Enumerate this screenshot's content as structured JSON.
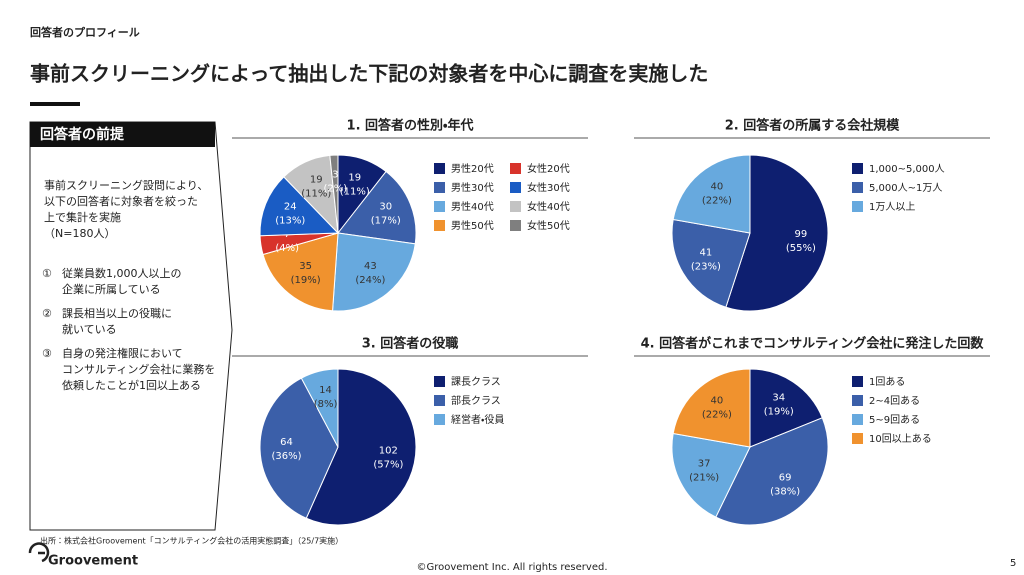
{
  "header": {
    "section": "回答者のプロフィール",
    "title": "事前スクリーニングによって抽出した下記の対象者を中心に調査を実施した"
  },
  "sidebar": {
    "heading": "回答者の前提",
    "intro": [
      "事前スクリーニング設問により、",
      "以下の回答者に対象者を絞った",
      "上で集計を実施",
      "（N=180人）"
    ],
    "items": [
      {
        "marker": "①",
        "lines": [
          "従業員数1,000人以上の",
          "企業に所属している"
        ]
      },
      {
        "marker": "②",
        "lines": [
          "課長相当以上の役職に",
          "就いている"
        ]
      },
      {
        "marker": "③",
        "lines": [
          "自身の発注権限において",
          "コンサルティング会社に業務を",
          "依頼したことが1回以上ある"
        ]
      }
    ]
  },
  "chart_data": [
    {
      "type": "pie",
      "title": "1. 回答者の性別・年代",
      "categories": [
        "男性20代",
        "男性30代",
        "男性40代",
        "男性50代",
        "女性20代",
        "女性30代",
        "女性40代",
        "女性50代"
      ],
      "values": [
        19,
        30,
        43,
        35,
        7,
        24,
        19,
        3
      ],
      "percent_labels": [
        "(11%)",
        "(17%)",
        "(24%)",
        "(19%)",
        "(4%)",
        "(13%)",
        "(11%)",
        "(2%)"
      ],
      "colors": [
        "#0e1f70",
        "#3b5fa9",
        "#67a9de",
        "#f0922e",
        "#d8332b",
        "#1a5cc4",
        "#c3c3c3",
        "#7f7f7f"
      ],
      "slice_order": [
        0,
        1,
        2,
        3,
        4,
        5,
        6,
        7
      ],
      "legend_columns": 2
    },
    {
      "type": "pie",
      "title": "2. 回答者の所属する会社規模",
      "categories": [
        "1,000~5,000人",
        "5,000人~1万人",
        "1万人以上"
      ],
      "values": [
        99,
        41,
        40
      ],
      "percent_labels": [
        "(55%)",
        "(23%)",
        "(22%)"
      ],
      "colors": [
        "#0e1f70",
        "#3b5fa9",
        "#67a9de"
      ],
      "legend_columns": 1
    },
    {
      "type": "pie",
      "title": "3. 回答者の役職",
      "categories": [
        "課長クラス",
        "部長クラス",
        "経営者・役員"
      ],
      "values": [
        102,
        64,
        14
      ],
      "percent_labels": [
        "(57%)",
        "(36%)",
        "(8%)"
      ],
      "colors": [
        "#0e1f70",
        "#3b5fa9",
        "#67a9de"
      ],
      "legend_columns": 1
    },
    {
      "type": "pie",
      "title": "4. 回答者がこれまでコンサルティング会社に発注した回数",
      "categories": [
        "1回ある",
        "2~4回ある",
        "5~9回ある",
        "10回以上ある"
      ],
      "values": [
        34,
        69,
        37,
        40
      ],
      "percent_labels": [
        "(19%)",
        "(38%)",
        "(21%)",
        "(22%)"
      ],
      "colors": [
        "#0e1f70",
        "#3b5fa9",
        "#67a9de",
        "#f0922e"
      ],
      "legend_columns": 1
    }
  ],
  "footer": {
    "source": "出所：株式会社Groovement「コンサルティング会社の活用実態調査」（25/7実施）",
    "logo": "Groovement",
    "copyright": "©Groovement Inc. All rights reserved.",
    "page": "5"
  }
}
